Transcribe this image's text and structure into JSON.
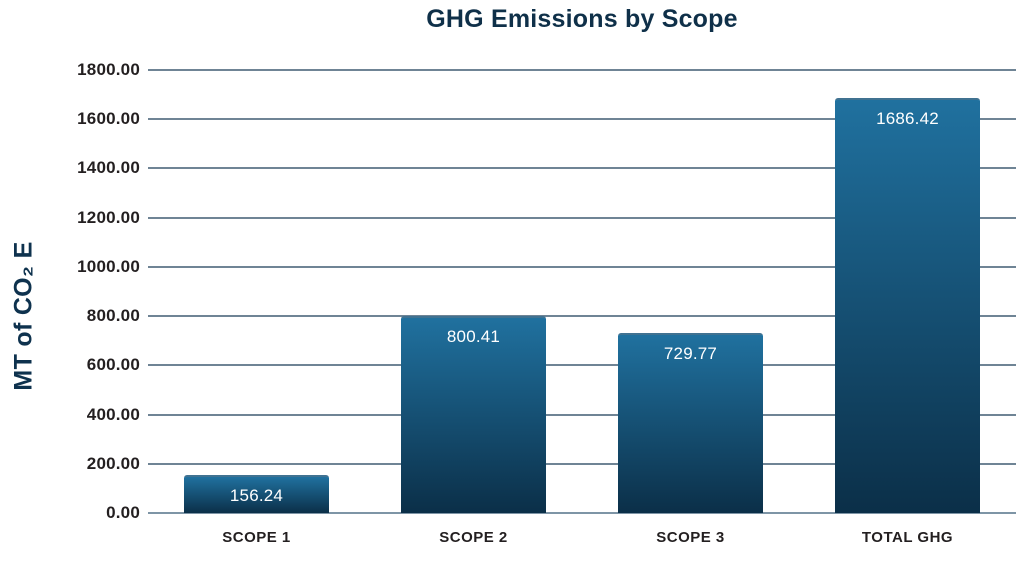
{
  "chart": {
    "title": "GHG Emissions by Scope",
    "y_axis_title": "MT of CO₂ E"
  },
  "chart_data": {
    "type": "bar",
    "title": "GHG Emissions by Scope",
    "categories": [
      "SCOPE 1",
      "SCOPE 2",
      "SCOPE 3",
      "TOTAL GHG"
    ],
    "values": [
      156.24,
      800.41,
      729.77,
      1686.42
    ],
    "value_labels": [
      "156.24",
      "800.41",
      "729.77",
      "1686.42"
    ],
    "xlabel": "",
    "ylabel": "MT of CO₂ E",
    "ylim": [
      0,
      1800
    ],
    "ytick_step": 200,
    "yticks": [
      "0.00",
      "200.00",
      "400.00",
      "600.00",
      "800.00",
      "1000.00",
      "1200.00",
      "1400.00",
      "1600.00",
      "1800.00"
    ],
    "grid": true,
    "legend": false,
    "colors": {
      "bar_gradient_top": "#20719f",
      "bar_gradient_bottom": "#0b2f48",
      "bar_top_edge": "rgba(110,170,205,0.55)",
      "gridline": "#6f8495",
      "baseline": "#7e95a6",
      "title": "#0f3049",
      "y_axis_title": "#0e324e",
      "axis_label": "#231f20",
      "value_label": "#ffffff"
    }
  }
}
